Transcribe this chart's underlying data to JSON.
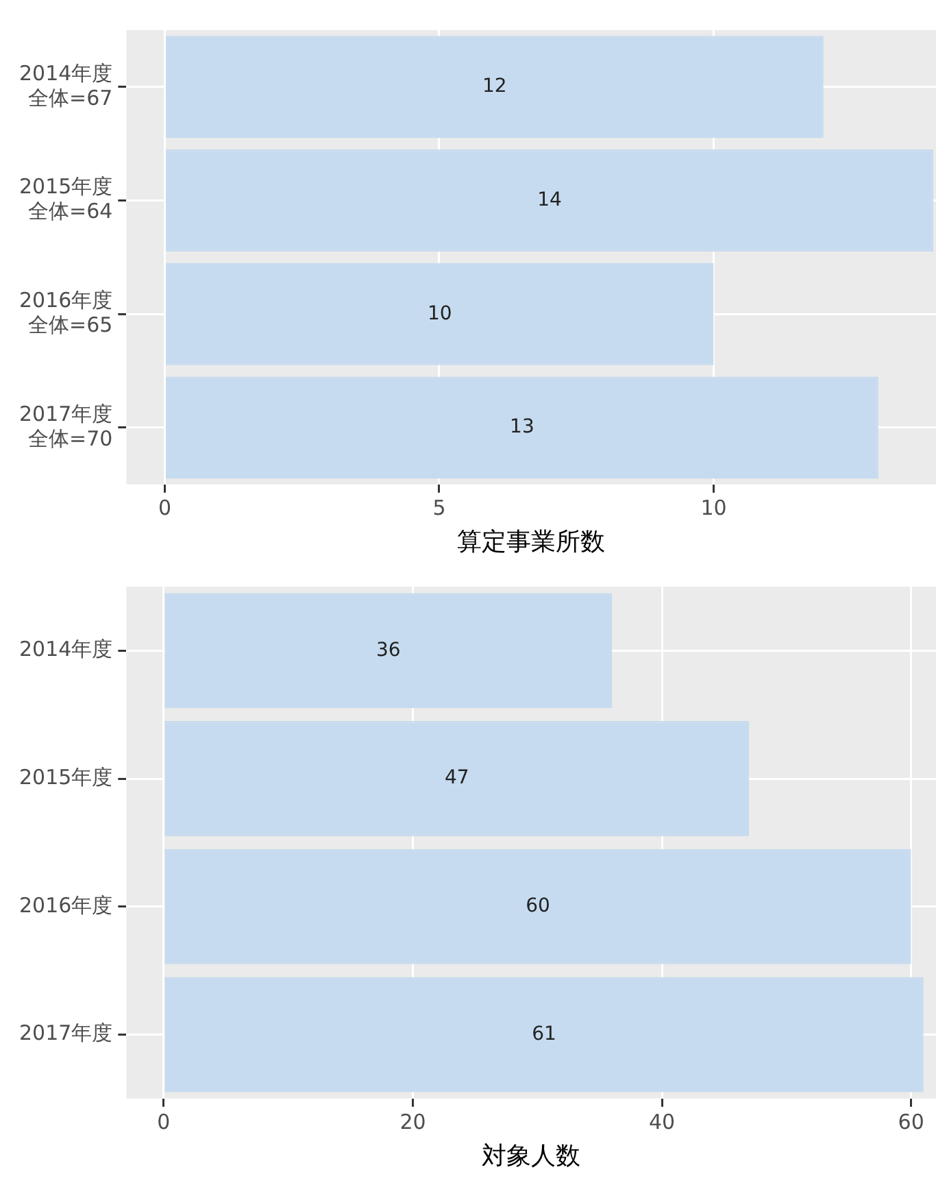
{
  "chart_data": [
    {
      "type": "bar",
      "orientation": "horizontal",
      "categories": [
        "2014年度全体=67",
        "2015年度全体=64",
        "2016年度全体=65",
        "2017年度全体=70"
      ],
      "series": [
        {
          "color": "#c6dbef",
          "values": [
            12,
            14,
            10,
            13
          ]
        }
      ],
      "xlabel": "算定事業所数",
      "xlim": [
        -0.7,
        14.05
      ],
      "xticks": [
        0,
        5,
        10
      ],
      "grid": true,
      "data_labels": true,
      "legend": false
    },
    {
      "type": "bar",
      "orientation": "horizontal",
      "categories": [
        "2014年度",
        "2015年度",
        "2016年度",
        "2017年度"
      ],
      "series": [
        {
          "color": "#c6dbef",
          "values": [
            36,
            47,
            60,
            61
          ]
        }
      ],
      "xlabel": "対象人数",
      "xlim": [
        -3,
        62
      ],
      "xticks": [
        0,
        20,
        40,
        60
      ],
      "grid": true,
      "data_labels": true,
      "legend": false
    }
  ]
}
